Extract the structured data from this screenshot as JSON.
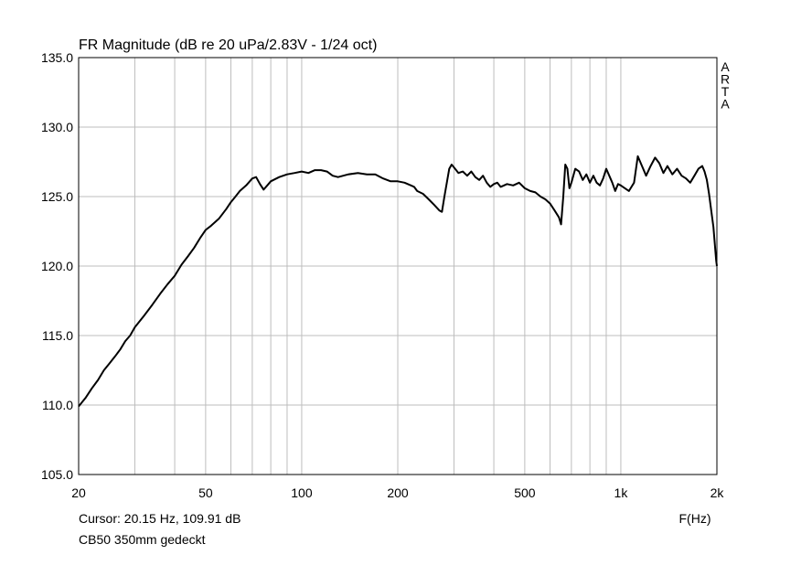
{
  "chart_data": {
    "type": "line",
    "title": "FR Magnitude (dB re 20 uPa/2.83V - 1/24 oct)",
    "watermark": [
      "A",
      "R",
      "T",
      "A"
    ],
    "xlabel": "F(Hz)",
    "ylabel": "",
    "x_scale": "log",
    "xlim": [
      20,
      2000
    ],
    "ylim": [
      105.0,
      135.0
    ],
    "x_ticks": [
      {
        "value": 20,
        "label": "20"
      },
      {
        "value": 50,
        "label": "50"
      },
      {
        "value": 100,
        "label": "100"
      },
      {
        "value": 200,
        "label": "200"
      },
      {
        "value": 500,
        "label": "500"
      },
      {
        "value": 1000,
        "label": "1k"
      },
      {
        "value": 2000,
        "label": "2k"
      }
    ],
    "y_ticks": [
      {
        "value": 105,
        "label": "105.0"
      },
      {
        "value": 110,
        "label": "110.0"
      },
      {
        "value": 115,
        "label": "115.0"
      },
      {
        "value": 120,
        "label": "120.0"
      },
      {
        "value": 125,
        "label": "125.0"
      },
      {
        "value": 130,
        "label": "130.0"
      },
      {
        "value": 135,
        "label": "135.0"
      }
    ],
    "grid": true,
    "cursor_readout": "Cursor: 20.15 Hz, 109.91 dB",
    "trace_label": "CB50 350mm gedeckt",
    "series": [
      {
        "color": "#000000",
        "points": [
          [
            20,
            109.9
          ],
          [
            21,
            110.5
          ],
          [
            22,
            111.2
          ],
          [
            23,
            111.8
          ],
          [
            24,
            112.5
          ],
          [
            25,
            113.0
          ],
          [
            26,
            113.5
          ],
          [
            27,
            114.0
          ],
          [
            28,
            114.6
          ],
          [
            29,
            115.0
          ],
          [
            30,
            115.6
          ],
          [
            32,
            116.4
          ],
          [
            34,
            117.2
          ],
          [
            36,
            118.0
          ],
          [
            38,
            118.7
          ],
          [
            40,
            119.3
          ],
          [
            42,
            120.1
          ],
          [
            44,
            120.7
          ],
          [
            46,
            121.3
          ],
          [
            48,
            122.0
          ],
          [
            50,
            122.6
          ],
          [
            52,
            122.9
          ],
          [
            55,
            123.4
          ],
          [
            58,
            124.1
          ],
          [
            60,
            124.6
          ],
          [
            62,
            125.0
          ],
          [
            64,
            125.4
          ],
          [
            67,
            125.8
          ],
          [
            70,
            126.3
          ],
          [
            72,
            126.4
          ],
          [
            74,
            125.9
          ],
          [
            76,
            125.5
          ],
          [
            78,
            125.8
          ],
          [
            80,
            126.1
          ],
          [
            85,
            126.4
          ],
          [
            90,
            126.6
          ],
          [
            95,
            126.7
          ],
          [
            100,
            126.8
          ],
          [
            105,
            126.7
          ],
          [
            110,
            126.9
          ],
          [
            115,
            126.9
          ],
          [
            120,
            126.8
          ],
          [
            125,
            126.5
          ],
          [
            130,
            126.4
          ],
          [
            140,
            126.6
          ],
          [
            150,
            126.7
          ],
          [
            160,
            126.6
          ],
          [
            170,
            126.6
          ],
          [
            180,
            126.3
          ],
          [
            190,
            126.1
          ],
          [
            200,
            126.1
          ],
          [
            210,
            126.0
          ],
          [
            220,
            125.8
          ],
          [
            225,
            125.7
          ],
          [
            230,
            125.4
          ],
          [
            240,
            125.2
          ],
          [
            250,
            124.8
          ],
          [
            260,
            124.4
          ],
          [
            270,
            124.0
          ],
          [
            275,
            123.9
          ],
          [
            280,
            125.0
          ],
          [
            290,
            127.0
          ],
          [
            295,
            127.3
          ],
          [
            300,
            127.1
          ],
          [
            310,
            126.7
          ],
          [
            320,
            126.8
          ],
          [
            330,
            126.5
          ],
          [
            340,
            126.8
          ],
          [
            350,
            126.4
          ],
          [
            360,
            126.2
          ],
          [
            370,
            126.5
          ],
          [
            380,
            126.0
          ],
          [
            390,
            125.7
          ],
          [
            400,
            125.9
          ],
          [
            410,
            126.0
          ],
          [
            420,
            125.7
          ],
          [
            440,
            125.9
          ],
          [
            460,
            125.8
          ],
          [
            480,
            126.0
          ],
          [
            500,
            125.6
          ],
          [
            520,
            125.4
          ],
          [
            540,
            125.3
          ],
          [
            560,
            125.0
          ],
          [
            580,
            124.8
          ],
          [
            600,
            124.5
          ],
          [
            620,
            124.0
          ],
          [
            640,
            123.5
          ],
          [
            650,
            123.0
          ],
          [
            660,
            125.0
          ],
          [
            670,
            127.3
          ],
          [
            680,
            127.0
          ],
          [
            690,
            125.6
          ],
          [
            700,
            126.0
          ],
          [
            720,
            127.0
          ],
          [
            740,
            126.8
          ],
          [
            760,
            126.2
          ],
          [
            780,
            126.6
          ],
          [
            800,
            126.0
          ],
          [
            820,
            126.5
          ],
          [
            840,
            126.0
          ],
          [
            860,
            125.8
          ],
          [
            880,
            126.3
          ],
          [
            900,
            127.0
          ],
          [
            920,
            126.5
          ],
          [
            940,
            126.0
          ],
          [
            960,
            125.4
          ],
          [
            980,
            125.9
          ],
          [
            1000,
            125.8
          ],
          [
            1030,
            125.6
          ],
          [
            1060,
            125.4
          ],
          [
            1100,
            126.0
          ],
          [
            1130,
            127.9
          ],
          [
            1160,
            127.3
          ],
          [
            1200,
            126.5
          ],
          [
            1240,
            127.2
          ],
          [
            1280,
            127.8
          ],
          [
            1320,
            127.4
          ],
          [
            1360,
            126.7
          ],
          [
            1400,
            127.2
          ],
          [
            1450,
            126.6
          ],
          [
            1500,
            127.0
          ],
          [
            1550,
            126.5
          ],
          [
            1600,
            126.3
          ],
          [
            1650,
            126.0
          ],
          [
            1700,
            126.5
          ],
          [
            1750,
            127.0
          ],
          [
            1800,
            127.2
          ],
          [
            1830,
            126.8
          ],
          [
            1860,
            126.2
          ],
          [
            1890,
            125.2
          ],
          [
            1920,
            124.0
          ],
          [
            1950,
            122.8
          ],
          [
            1970,
            121.6
          ],
          [
            1990,
            120.4
          ],
          [
            2000,
            120.0
          ]
        ]
      }
    ]
  }
}
